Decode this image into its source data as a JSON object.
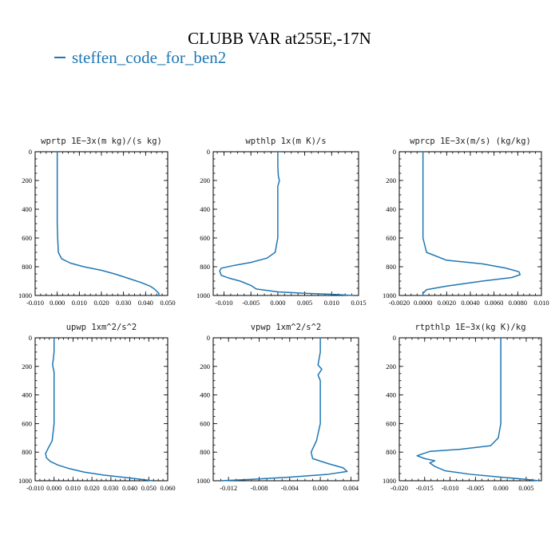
{
  "title": "CLUBB VAR at255E,-17N",
  "legend": {
    "label": "steffen_code_for_ben2",
    "color": "#1f77b4"
  },
  "chart_data": [
    {
      "type": "line",
      "title": "wprtp  1E−3x(m kg)/(s kg)",
      "xlim": [
        -0.01,
        0.05
      ],
      "ylim": [
        1000,
        0
      ],
      "xticks": [
        -0.01,
        0.0,
        0.01,
        0.02,
        0.03,
        0.04,
        0.05
      ],
      "xticklabels": [
        "-0.010",
        "0.000",
        "0.010",
        "0.020",
        "0.030",
        "0.040",
        "0.050"
      ],
      "yticks": [
        0,
        200,
        400,
        600,
        800,
        1000
      ],
      "yticklabels": [
        "0",
        "200",
        "400",
        "600",
        "800",
        "1000"
      ],
      "series": [
        {
          "x": [
            0.0,
            0.0,
            0.0,
            0.0,
            0.0,
            0.0,
            0.0002,
            0.0005,
            0.002,
            0.006,
            0.012,
            0.02,
            0.026,
            0.032,
            0.038,
            0.042,
            0.044,
            0.045,
            0.046,
            0.046
          ],
          "y": [
            0,
            100,
            200,
            300,
            400,
            500,
            600,
            700,
            745,
            775,
            800,
            825,
            850,
            880,
            910,
            935,
            955,
            970,
            985,
            1000
          ]
        }
      ]
    },
    {
      "type": "line",
      "title": "wpthlp  1x(m K)/s",
      "xlim": [
        -0.012,
        0.015
      ],
      "ylim": [
        1000,
        0
      ],
      "xticks": [
        -0.01,
        -0.005,
        0.0,
        0.005,
        0.01,
        0.015
      ],
      "xticklabels": [
        "-0.010",
        "-0.005",
        "0.000",
        "0.005",
        "0.010",
        "0.015"
      ],
      "yticks": [
        0,
        200,
        400,
        600,
        800,
        1000
      ],
      "yticklabels": [
        "0",
        "200",
        "400",
        "600",
        "800",
        "1000"
      ],
      "series": [
        {
          "x": [
            0.0,
            0.0,
            0.0001,
            0.0003,
            0.0002,
            0.0,
            0.0,
            0.0,
            0.0,
            0.0,
            -0.0005,
            -0.002,
            -0.005,
            -0.008,
            -0.0105,
            -0.0108,
            -0.0105,
            -0.009,
            -0.007,
            -0.005,
            -0.004,
            0.0,
            0.005,
            0.01,
            0.014
          ],
          "y": [
            0,
            100,
            170,
            200,
            215,
            240,
            300,
            400,
            500,
            600,
            700,
            740,
            770,
            790,
            810,
            830,
            860,
            880,
            900,
            930,
            955,
            975,
            985,
            992,
            1000
          ]
        }
      ]
    },
    {
      "type": "line",
      "title": "wprcp  1E−3x(m/s) (kg/kg)",
      "xlim": [
        -0.002,
        0.01
      ],
      "ylim": [
        1000,
        0
      ],
      "xticks": [
        -0.002,
        0.0,
        0.002,
        0.004,
        0.006,
        0.008,
        0.01
      ],
      "xticklabels": [
        "-0.0020",
        "0.0000",
        "0.0020",
        "0.0040",
        "0.0060",
        "0.0080",
        "0.010"
      ],
      "yticks": [
        0,
        200,
        400,
        600,
        800,
        1000
      ],
      "yticklabels": [
        "0",
        "200",
        "400",
        "600",
        "800",
        "1000"
      ],
      "series": [
        {
          "x": [
            0.0,
            0.0,
            0.0,
            0.0,
            0.0,
            0.0,
            0.0,
            0.0003,
            0.002,
            0.005,
            0.007,
            0.0081,
            0.0082,
            0.0075,
            0.005,
            0.002,
            0.0003,
            0.0,
            0.0
          ],
          "y": [
            0,
            100,
            200,
            300,
            400,
            500,
            600,
            700,
            755,
            780,
            810,
            835,
            855,
            875,
            900,
            935,
            960,
            985,
            1000
          ]
        }
      ]
    },
    {
      "type": "line",
      "title": "upwp  1xm^2/s^2",
      "xlim": [
        -0.01,
        0.06
      ],
      "ylim": [
        1000,
        0
      ],
      "xticks": [
        -0.01,
        0.0,
        0.01,
        0.02,
        0.03,
        0.04,
        0.05,
        0.06
      ],
      "xticklabels": [
        "-0.010",
        "0.000",
        "0.010",
        "0.020",
        "0.030",
        "0.040",
        "0.050",
        "0.060"
      ],
      "yticks": [
        0,
        200,
        400,
        600,
        800,
        1000
      ],
      "yticklabels": [
        "0",
        "200",
        "400",
        "600",
        "800",
        "1000"
      ],
      "series": [
        {
          "x": [
            0.0,
            0.0,
            -0.0005,
            -0.0008,
            0.0,
            0.0,
            0.0,
            0.0,
            0.0,
            -0.001,
            -0.003,
            -0.0045,
            -0.004,
            -0.002,
            0.002,
            0.008,
            0.016,
            0.026,
            0.036,
            0.046,
            0.052
          ],
          "y": [
            0,
            100,
            160,
            190,
            240,
            300,
            400,
            500,
            600,
            720,
            770,
            810,
            840,
            865,
            890,
            915,
            940,
            960,
            975,
            990,
            1000
          ]
        }
      ]
    },
    {
      "type": "line",
      "title": "vpwp  1xm^2/s^2",
      "xlim": [
        -0.014,
        0.005
      ],
      "ylim": [
        1000,
        0
      ],
      "xticks": [
        -0.012,
        -0.008,
        -0.004,
        0.0,
        0.004
      ],
      "xticklabels": [
        "-0.012",
        "-0.008",
        "-0.004",
        "0.000",
        "0.004"
      ],
      "yticks": [
        0,
        200,
        400,
        600,
        800,
        1000
      ],
      "yticklabels": [
        "0",
        "200",
        "400",
        "600",
        "800",
        "1000"
      ],
      "series": [
        {
          "x": [
            0.0,
            0.0,
            -0.0003,
            0.0002,
            -0.0003,
            0.0,
            0.0,
            0.0,
            0.0,
            -0.0005,
            -0.0012,
            -0.001,
            0.001,
            0.003,
            0.0035,
            0.001,
            -0.004,
            -0.009,
            -0.013
          ],
          "y": [
            0,
            100,
            190,
            220,
            260,
            300,
            400,
            500,
            600,
            720,
            800,
            845,
            880,
            910,
            935,
            955,
            975,
            990,
            1000
          ]
        }
      ]
    },
    {
      "type": "line",
      "title": "rtpthlp  1E−3x(kg K)/kg",
      "xlim": [
        -0.02,
        0.008
      ],
      "ylim": [
        1000,
        0
      ],
      "xticks": [
        -0.02,
        -0.015,
        -0.01,
        -0.005,
        0.0,
        0.005
      ],
      "xticklabels": [
        "-0.020",
        "-0.015",
        "-0.010",
        "-0.005",
        "0.000",
        "0.005"
      ],
      "yticks": [
        0,
        200,
        400,
        600,
        800,
        1000
      ],
      "yticklabels": [
        "0",
        "200",
        "400",
        "600",
        "800",
        "1000"
      ],
      "series": [
        {
          "x": [
            0.0,
            0.0,
            0.0,
            0.0,
            0.0,
            0.0,
            0.0,
            -0.0005,
            -0.002,
            -0.008,
            -0.014,
            -0.0165,
            -0.015,
            -0.013,
            -0.014,
            -0.013,
            -0.011,
            -0.006,
            0.0,
            0.005,
            0.0075
          ],
          "y": [
            0,
            100,
            200,
            300,
            400,
            500,
            600,
            700,
            755,
            780,
            795,
            825,
            845,
            860,
            875,
            900,
            930,
            955,
            975,
            990,
            1000
          ]
        }
      ]
    }
  ]
}
